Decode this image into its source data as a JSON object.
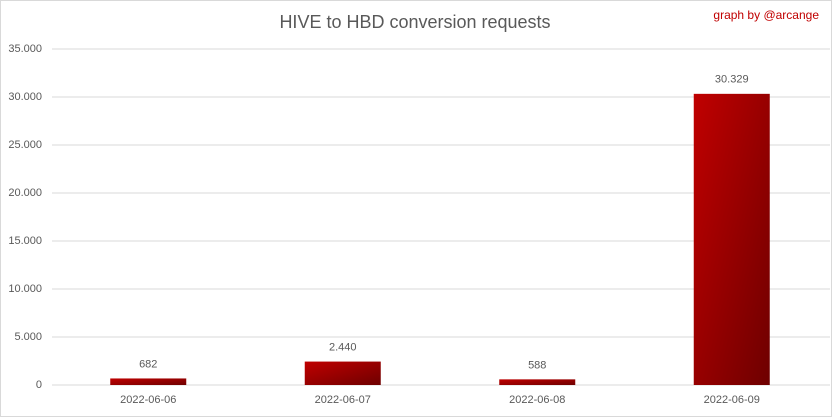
{
  "chart_data": {
    "type": "bar",
    "title": "HIVE to HBD conversion requests",
    "annotation": "graph by @arcange",
    "categories": [
      "2022-06-06",
      "2022-06-07",
      "2022-06-08",
      "2022-06-09"
    ],
    "values": [
      682,
      2440,
      588,
      30329
    ],
    "value_labels": [
      "682",
      "2.440",
      "588",
      "30.329"
    ],
    "color": "#c00000",
    "ylim": [
      0,
      35000
    ],
    "yticks": [
      0,
      {
        "value": 5000,
        "label": "5.000"
      },
      {
        "value": 10000,
        "label": "10.000"
      },
      {
        "value": 15000,
        "label": "15.000"
      },
      {
        "value": 20000,
        "label": "20.000"
      },
      {
        "value": 25000,
        "label": "25.000"
      },
      {
        "value": 30000,
        "label": "30.000"
      },
      {
        "value": 35000,
        "label": "35.000"
      }
    ],
    "grid": true
  }
}
